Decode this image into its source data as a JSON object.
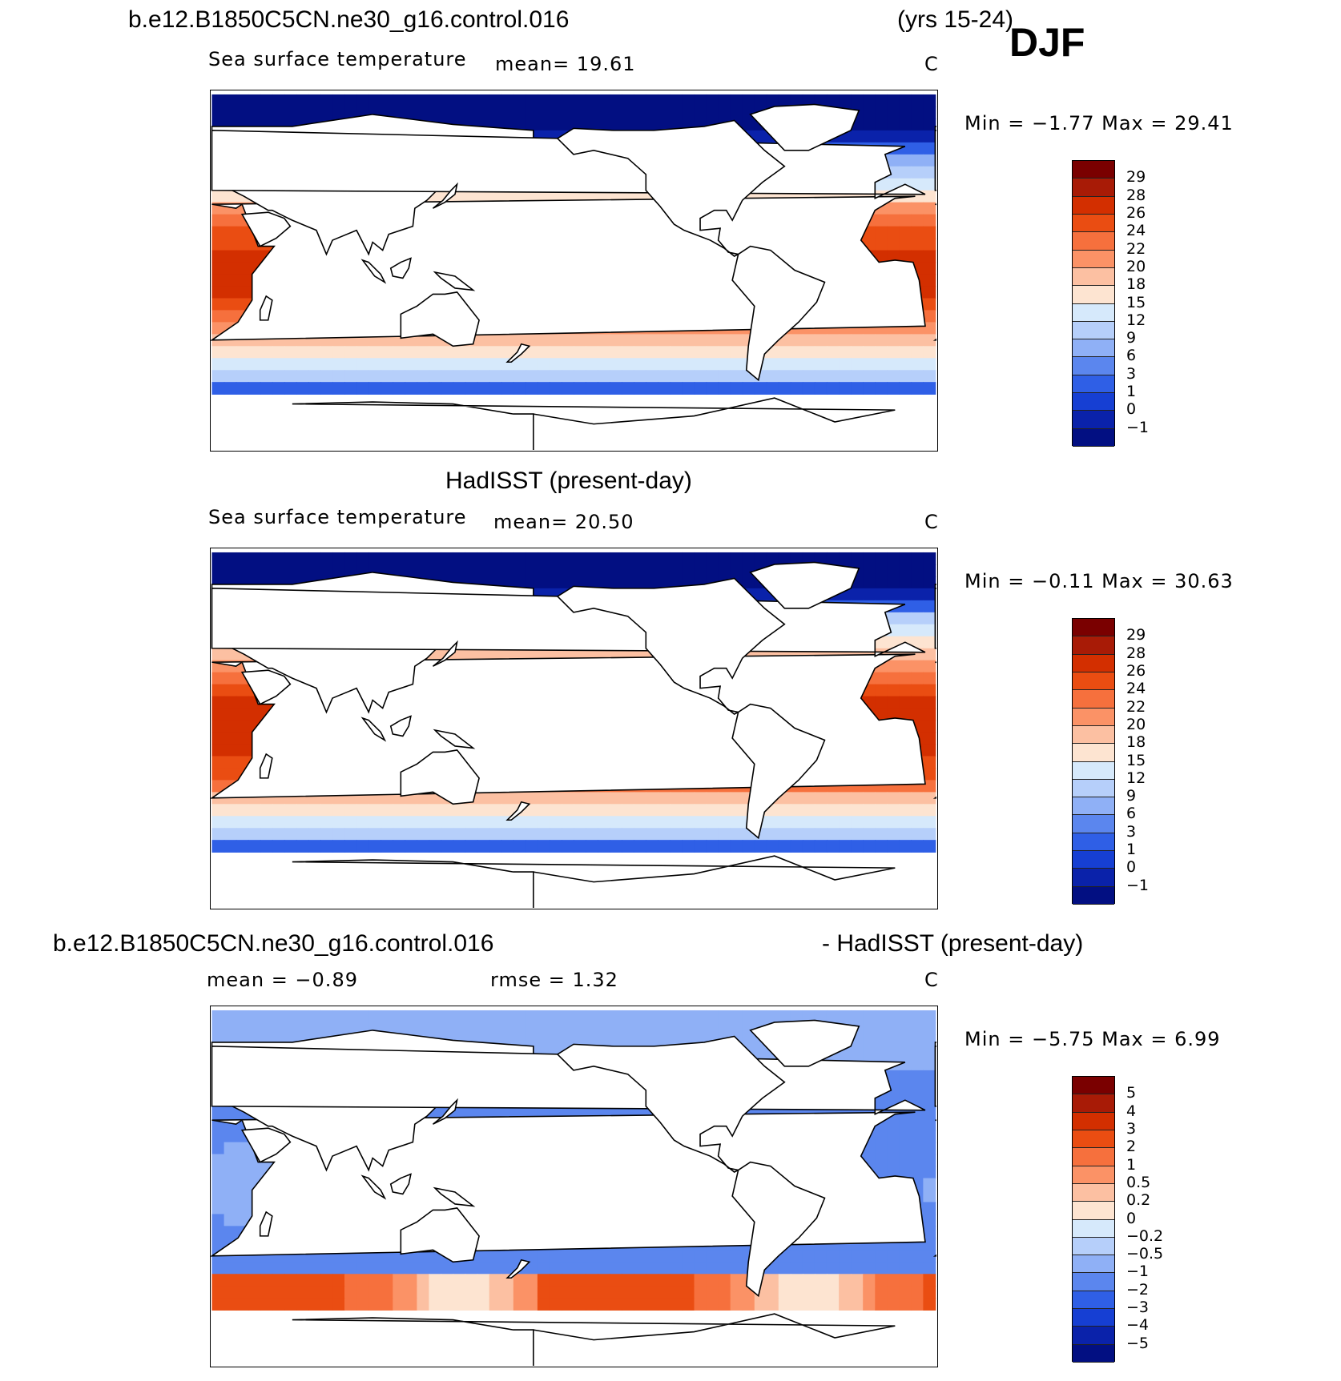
{
  "header": {
    "case_name": "b.e12.B1850C5CN.ne30_g16.control.016",
    "years": "(yrs 15-24)",
    "season": "DJF"
  },
  "panels": [
    {
      "id": "model",
      "title": "",
      "subtitle_left": "Sea surface temperature",
      "stat_text": "mean=   19.61",
      "units": "C",
      "minmax": "Min =   −1.77  Max =   29.41",
      "field": "sst",
      "colorbar_labels": [
        "29",
        "28",
        "26",
        "24",
        "22",
        "20",
        "18",
        "15",
        "12",
        "9",
        "6",
        "3",
        "1",
        "0",
        "−1"
      ],
      "colors": [
        "#7a0000",
        "#a81b06",
        "#d32f00",
        "#ea4d12",
        "#f6703d",
        "#fb9266",
        "#fcc0a2",
        "#fde4d1",
        "#d6e9fb",
        "#b6cffa",
        "#8fb0f6",
        "#5b86ee",
        "#2f5fe6",
        "#163fd3",
        "#0a22aa",
        "#020f82"
      ]
    },
    {
      "id": "obs",
      "title": "HadISST (present-day)",
      "subtitle_left": "Sea surface temperature",
      "stat_text": "mean=   20.50",
      "units": "C",
      "minmax": "Min =   −0.11  Max =   30.63",
      "field": "sst",
      "colorbar_labels": [
        "29",
        "28",
        "26",
        "24",
        "22",
        "20",
        "18",
        "15",
        "12",
        "9",
        "6",
        "3",
        "1",
        "0",
        "−1"
      ],
      "colors": [
        "#7a0000",
        "#a81b06",
        "#d32f00",
        "#ea4d12",
        "#f6703d",
        "#fb9266",
        "#fcc0a2",
        "#fde4d1",
        "#d6e9fb",
        "#b6cffa",
        "#8fb0f6",
        "#5b86ee",
        "#2f5fe6",
        "#163fd3",
        "#0a22aa",
        "#020f82"
      ]
    },
    {
      "id": "diff",
      "title_left": "b.e12.B1850C5CN.ne30_g16.control.016",
      "title_right": "- HadISST (present-day)",
      "stat_mean": "mean =   −0.89",
      "stat_rmse": "rmse =     1.32",
      "units": "C",
      "minmax": "Min =   −5.75  Max =     6.99",
      "field": "diff",
      "colorbar_labels": [
        "5",
        "4",
        "3",
        "2",
        "1",
        "0.5",
        "0.2",
        "0",
        "−0.2",
        "−0.5",
        "−1",
        "−2",
        "−3",
        "−4",
        "−5"
      ],
      "colors": [
        "#7a0000",
        "#a81b06",
        "#d32f00",
        "#ea4d12",
        "#f6703d",
        "#fb9266",
        "#fcc0a2",
        "#fde4d1",
        "#d6e9fb",
        "#b6cffa",
        "#8fb0f6",
        "#5b86ee",
        "#2f5fe6",
        "#163fd3",
        "#0a22aa",
        "#020f82"
      ]
    }
  ]
}
